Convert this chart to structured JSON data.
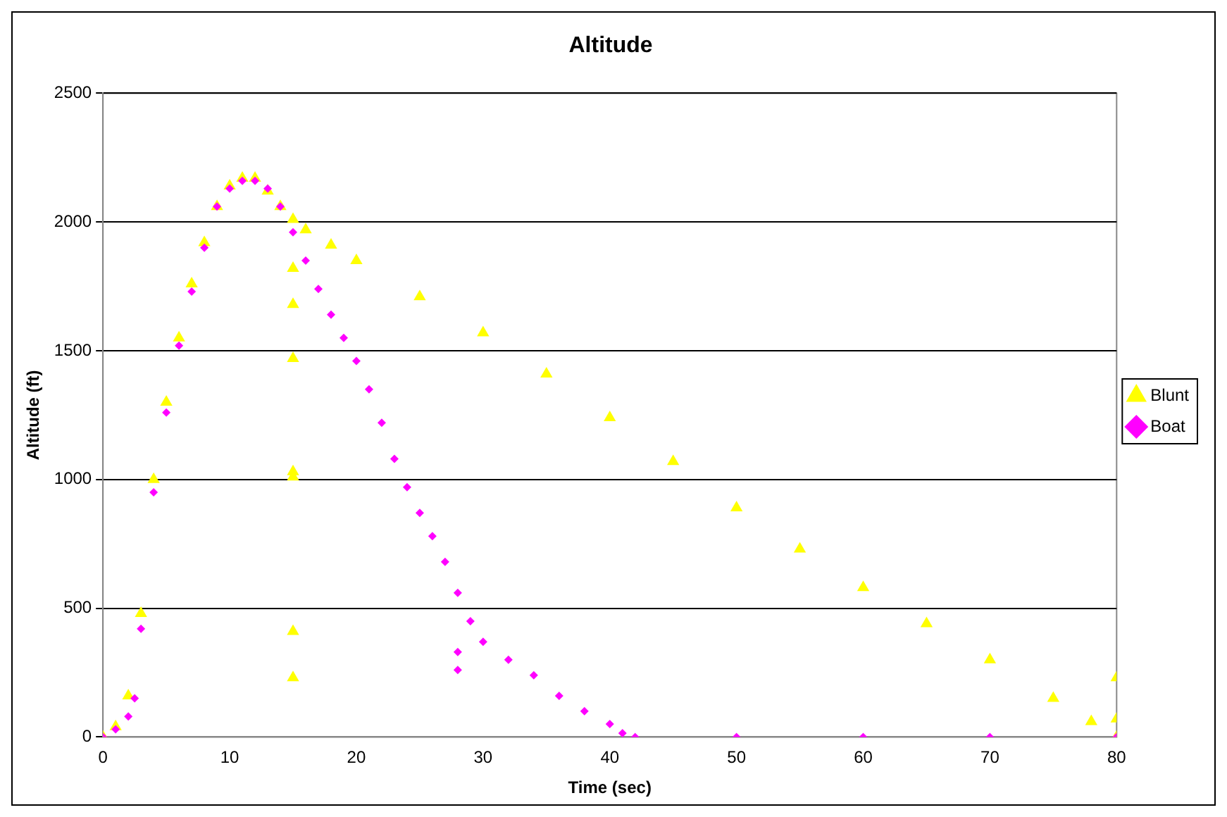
{
  "chart_data": {
    "type": "scatter",
    "title": "Altitude",
    "xlabel": "Time (sec)",
    "ylabel": "Altitude (ft)",
    "xlim": [
      0,
      80
    ],
    "xticks": [
      0,
      10,
      20,
      30,
      40,
      50,
      60,
      70,
      80
    ],
    "ylim": [
      0,
      2500
    ],
    "yticks": [
      0,
      500,
      1000,
      1500,
      2000,
      2500
    ],
    "grid": "y",
    "legend": "right",
    "series": [
      {
        "name": "Blunt",
        "color": "#ffff00",
        "marker": "triangle",
        "x": [
          0,
          1,
          2,
          3,
          4,
          5,
          6,
          7,
          8,
          9,
          10,
          11,
          12,
          13,
          14,
          15,
          16,
          18,
          20,
          25,
          30,
          35,
          40,
          45,
          50,
          55,
          60,
          65,
          70,
          75,
          78,
          80,
          15,
          15,
          15,
          15,
          15,
          15,
          15,
          80,
          80
        ],
        "values": [
          0,
          40,
          160,
          480,
          1000,
          1300,
          1550,
          1760,
          1920,
          2060,
          2140,
          2170,
          2170,
          2120,
          2060,
          2010,
          1970,
          1910,
          1850,
          1710,
          1570,
          1410,
          1240,
          1070,
          890,
          730,
          580,
          440,
          300,
          150,
          60,
          0,
          1820,
          1680,
          1470,
          1030,
          1010,
          410,
          230,
          230,
          70
        ]
      },
      {
        "name": "Boat",
        "color": "#ff00ff",
        "marker": "diamond",
        "x": [
          0,
          1,
          2,
          2.5,
          3,
          4,
          5,
          6,
          7,
          8,
          9,
          10,
          11,
          12,
          13,
          14,
          15,
          16,
          17,
          18,
          19,
          20,
          21,
          22,
          23,
          24,
          25,
          26,
          27,
          28,
          29,
          30,
          32,
          34,
          36,
          38,
          40,
          41,
          42,
          50,
          60,
          70,
          80,
          28,
          28
        ],
        "values": [
          0,
          30,
          80,
          150,
          420,
          950,
          1260,
          1520,
          1730,
          1900,
          2060,
          2130,
          2160,
          2160,
          2130,
          2060,
          1960,
          1850,
          1740,
          1640,
          1550,
          1460,
          1350,
          1220,
          1080,
          970,
          870,
          780,
          680,
          560,
          450,
          370,
          300,
          240,
          160,
          100,
          50,
          15,
          0,
          0,
          0,
          0,
          0,
          330,
          260
        ]
      }
    ]
  }
}
